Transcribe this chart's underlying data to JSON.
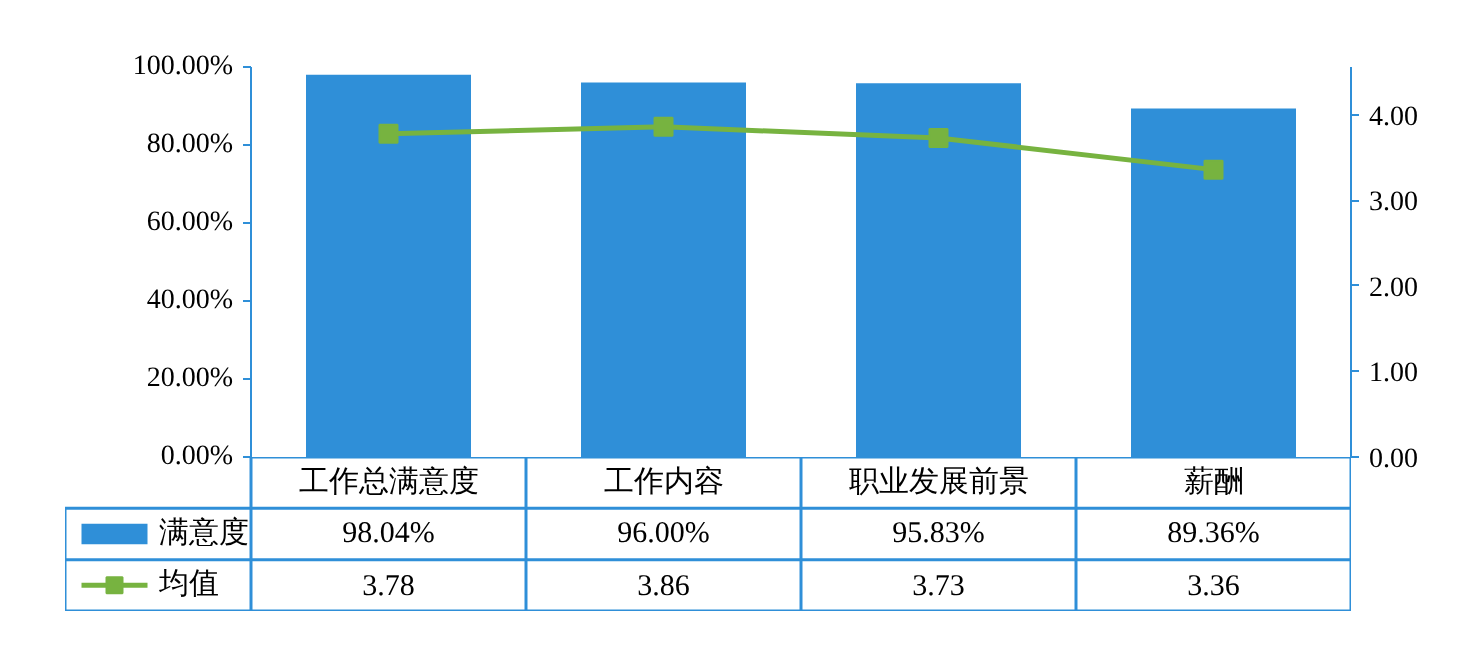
{
  "chart_data": {
    "type": "bar",
    "categories": [
      "工作总满意度",
      "工作内容",
      "职业发展前景",
      "薪酬"
    ],
    "series": [
      {
        "name": "满意度",
        "color": "#2f8fd8",
        "values": [
          98.04,
          96.0,
          95.83,
          89.36
        ],
        "value_labels": [
          "98.04%",
          "96.00%",
          "95.83%",
          "89.36%"
        ]
      },
      {
        "name": "均值",
        "type": "line",
        "axis": "y2",
        "color": "#77b340",
        "marker": "square",
        "values": [
          3.78,
          3.86,
          3.73,
          3.36
        ],
        "value_labels": [
          "3.78",
          "3.86",
          "3.73",
          "3.36"
        ]
      }
    ],
    "legend": "bottom left",
    "ylim": [
      0,
      100
    ],
    "yticks": [
      {
        "value": 0,
        "label": "0.00%"
      },
      {
        "value": 20,
        "label": "20.00%"
      },
      {
        "value": 40,
        "label": "40.00%"
      },
      {
        "value": 60,
        "label": "60.00%"
      },
      {
        "value": 80,
        "label": "80.00%"
      },
      {
        "value": 100,
        "label": "100.00%"
      }
    ],
    "y2lim": [
      0,
      4.56
    ],
    "y2ticks": [
      {
        "value": 0,
        "label": "0.00"
      },
      {
        "value": 1,
        "label": "1.00"
      },
      {
        "value": 2,
        "label": "2.00"
      },
      {
        "value": 3,
        "label": "3.00"
      },
      {
        "value": 4,
        "label": "4.00"
      }
    ]
  }
}
